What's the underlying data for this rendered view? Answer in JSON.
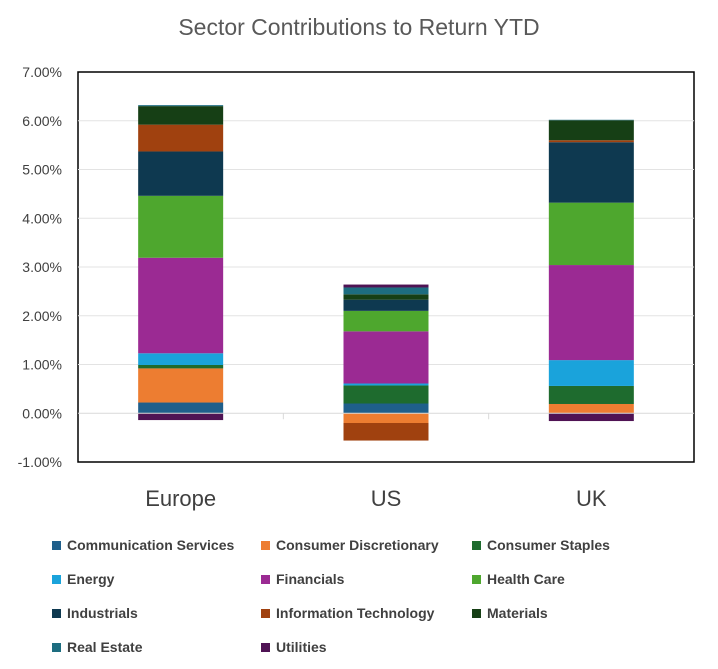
{
  "chart_data": {
    "type": "bar",
    "stacked": true,
    "title": "Sector Contributions to Return YTD",
    "xlabel": "",
    "ylabel": "",
    "ylim": [
      -1,
      7
    ],
    "ytick_labels": [
      "-1.00%",
      "0.00%",
      "1.00%",
      "2.00%",
      "3.00%",
      "4.00%",
      "5.00%",
      "6.00%",
      "7.00%"
    ],
    "categories": [
      "Europe",
      "US",
      "UK"
    ],
    "grid": "horizontal",
    "legend_position": "bottom",
    "series": [
      {
        "name": "Communication Services",
        "color": "#1F5F8B",
        "values": [
          0.22,
          0.2,
          0.0
        ]
      },
      {
        "name": "Consumer Discretionary",
        "color": "#ED7D31",
        "values": [
          0.7,
          -0.2,
          0.19
        ]
      },
      {
        "name": "Consumer Staples",
        "color": "#1E6B2E",
        "values": [
          0.07,
          0.37,
          0.37
        ]
      },
      {
        "name": "Energy",
        "color": "#1AA3DB",
        "values": [
          0.24,
          0.04,
          0.53
        ]
      },
      {
        "name": "Financials",
        "color": "#9B2A93",
        "values": [
          1.96,
          1.07,
          1.95
        ]
      },
      {
        "name": "Health Care",
        "color": "#4EA72E",
        "values": [
          1.27,
          0.42,
          1.28
        ]
      },
      {
        "name": "Industrials",
        "color": "#0E3950",
        "values": [
          0.91,
          0.23,
          1.24
        ]
      },
      {
        "name": "Information Technology",
        "color": "#A0410F",
        "values": [
          0.55,
          -0.36,
          0.04
        ]
      },
      {
        "name": "Materials",
        "color": "#163F15",
        "values": [
          0.38,
          0.11,
          0.41
        ]
      },
      {
        "name": "Real Estate",
        "color": "#1D6D80",
        "values": [
          0.02,
          0.14,
          0.01
        ]
      },
      {
        "name": "Utilities",
        "color": "#4F1354",
        "values": [
          -0.14,
          0.06,
          -0.16
        ]
      }
    ]
  }
}
